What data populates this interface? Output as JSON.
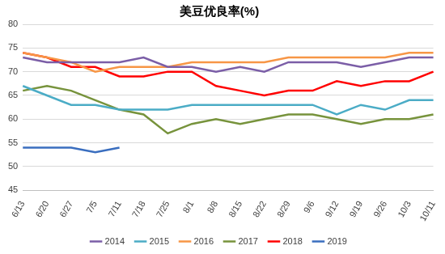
{
  "chart_data": {
    "type": "line",
    "title": "美豆优良率(%)",
    "categories": [
      "6/13",
      "6/20",
      "6/27",
      "7/5",
      "7/11",
      "7/18",
      "7/25",
      "8/1",
      "8/8",
      "8/15",
      "8/22",
      "8/29",
      "9/6",
      "9/12",
      "9/19",
      "9/26",
      "10/3",
      "10/11"
    ],
    "series": [
      {
        "name": "2014",
        "color": "#7b5ea7",
        "values": [
          73,
          72,
          72,
          72,
          72,
          73,
          71,
          71,
          70,
          71,
          70,
          72,
          72,
          72,
          71,
          72,
          73,
          73
        ]
      },
      {
        "name": "2015",
        "color": "#4bacc6",
        "values": [
          67,
          65,
          63,
          63,
          62,
          62,
          62,
          63,
          63,
          63,
          63,
          63,
          63,
          61,
          63,
          62,
          64,
          64
        ]
      },
      {
        "name": "2016",
        "color": "#f79646",
        "values": [
          74,
          73,
          72,
          70,
          71,
          71,
          71,
          72,
          72,
          72,
          72,
          73,
          73,
          73,
          73,
          73,
          74,
          74
        ]
      },
      {
        "name": "2017",
        "color": "#77933c",
        "values": [
          66,
          67,
          66,
          64,
          62,
          61,
          57,
          59,
          60,
          59,
          60,
          61,
          61,
          60,
          59,
          60,
          60,
          61
        ]
      },
      {
        "name": "2018",
        "color": "#ff0000",
        "values": [
          74,
          73,
          71,
          71,
          69,
          69,
          70,
          70,
          67,
          66,
          65,
          66,
          66,
          68,
          67,
          68,
          68,
          70
        ]
      },
      {
        "name": "2019",
        "color": "#3a6ebf",
        "values": [
          54,
          54,
          54,
          53,
          54,
          null,
          null,
          null,
          null,
          null,
          null,
          null,
          null,
          null,
          null,
          null,
          null,
          null
        ]
      }
    ],
    "ylim": [
      45,
      80
    ],
    "yticks": [
      45,
      50,
      55,
      60,
      65,
      70,
      75,
      80
    ],
    "grid": true,
    "legend": "bottom"
  }
}
